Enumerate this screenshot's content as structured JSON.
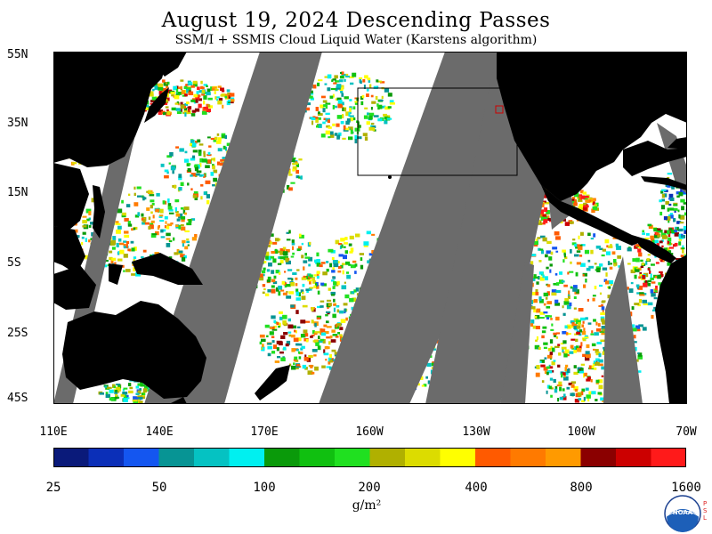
{
  "title": "August 19, 2024  Descending Passes",
  "subtitle": "SSM/I + SSMIS Cloud Liquid Water (Karstens algorithm)",
  "lat_labels": [
    "55N",
    "35N",
    "15N",
    "5S",
    "25S",
    "45S"
  ],
  "lon_labels": [
    "110E",
    "140E",
    "170E",
    "160W",
    "130W",
    "100W",
    "70W"
  ],
  "colorbar": {
    "labels": [
      "25",
      "50",
      "100",
      "200",
      "400",
      "800",
      "1600"
    ],
    "units": "g/m²",
    "colors": [
      "#0a1a7a",
      "#0b2fb8",
      "#1456f0",
      "#079494",
      "#05c2c2",
      "#00f0f0",
      "#0a9a0a",
      "#10c010",
      "#20e020",
      "#b0b000",
      "#dcdc00",
      "#ffff00",
      "#ff5a00",
      "#ff7a00",
      "#ff9a00",
      "#8b0000",
      "#cc0000",
      "#ff1a1a"
    ]
  },
  "palette": {
    "land": "#000000",
    "no_data": "#6b6b6b",
    "clear": "#ffffff"
  },
  "logo": {
    "text": "NOAA",
    "side_text": "PSL"
  }
}
